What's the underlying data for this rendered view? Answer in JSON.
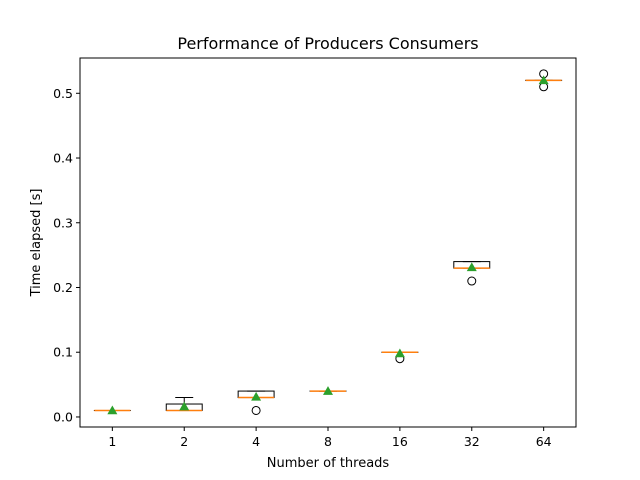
{
  "chart_data": {
    "type": "box",
    "title": "Performance of Producers Consumers",
    "xlabel": "Number of threads",
    "ylabel": "Time elapsed [s]",
    "categories": [
      "1",
      "2",
      "4",
      "8",
      "16",
      "32",
      "64"
    ],
    "ylim": [
      -0.0155,
      0.5545
    ],
    "yticks": [
      0.0,
      0.1,
      0.2,
      0.3,
      0.4,
      0.5
    ],
    "ytick_labels": [
      "0.0",
      "0.1",
      "0.2",
      "0.3",
      "0.4",
      "0.5"
    ],
    "grid": false,
    "boxes": [
      {
        "category": "1",
        "whisker_low": 0.01,
        "q1": 0.01,
        "median": 0.01,
        "q3": 0.01,
        "whisker_high": 0.01,
        "mean": 0.01,
        "outliers": []
      },
      {
        "category": "2",
        "whisker_low": 0.01,
        "q1": 0.01,
        "median": 0.01,
        "q3": 0.02,
        "whisker_high": 0.03,
        "mean": 0.016,
        "outliers": []
      },
      {
        "category": "4",
        "whisker_low": 0.03,
        "q1": 0.03,
        "median": 0.03,
        "q3": 0.04,
        "whisker_high": 0.04,
        "mean": 0.031,
        "outliers": [
          0.01
        ]
      },
      {
        "category": "8",
        "whisker_low": 0.04,
        "q1": 0.04,
        "median": 0.04,
        "q3": 0.04,
        "whisker_high": 0.04,
        "mean": 0.04,
        "outliers": []
      },
      {
        "category": "16",
        "whisker_low": 0.1,
        "q1": 0.1,
        "median": 0.1,
        "q3": 0.1,
        "whisker_high": 0.1,
        "mean": 0.098,
        "outliers": [
          0.09
        ]
      },
      {
        "category": "32",
        "whisker_low": 0.23,
        "q1": 0.23,
        "median": 0.23,
        "q3": 0.24,
        "whisker_high": 0.24,
        "mean": 0.231,
        "outliers": [
          0.21
        ]
      },
      {
        "category": "64",
        "whisker_low": 0.52,
        "q1": 0.52,
        "median": 0.52,
        "q3": 0.52,
        "whisker_high": 0.52,
        "mean": 0.52,
        "outliers": [
          0.51,
          0.53
        ]
      }
    ],
    "colors": {
      "box": "#000000",
      "median": "#ff7f0e",
      "mean": "#2ca02c",
      "outlier": "#000000"
    }
  }
}
